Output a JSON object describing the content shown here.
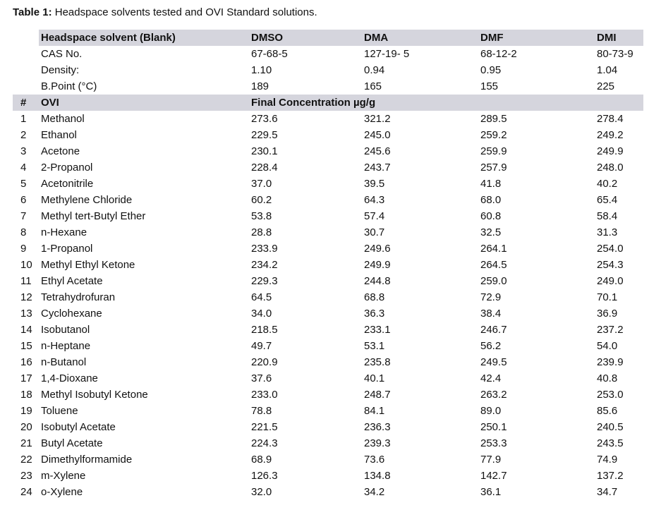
{
  "caption": {
    "label": "Table 1:",
    "text": " Headspace solvents tested and OVI Standard solutions."
  },
  "colors": {
    "header_band_bg": "#d5d5dd",
    "text": "#111111"
  },
  "table": {
    "solvent_header": {
      "label": "Headspace solvent (Blank)",
      "columns": [
        "DMSO",
        "DMA",
        "DMF",
        "DMI"
      ]
    },
    "info_rows": [
      {
        "label": "CAS No.",
        "values": [
          "67-68-5",
          "127-19- 5",
          "68-12-2",
          "80-73-9"
        ]
      },
      {
        "label": "Density:",
        "values": [
          "1.10",
          "0.94",
          "0.95",
          "1.04"
        ]
      },
      {
        "label": "B.Point (°C)",
        "values": [
          "189",
          "165",
          "155",
          "225"
        ]
      }
    ],
    "ovi_header": {
      "num": "#",
      "label": "OVI",
      "conc_label": "Final Concentration µg/g"
    },
    "rows": [
      {
        "num": "1",
        "name": "Methanol",
        "values": [
          "273.6",
          "321.2",
          "289.5",
          "278.4"
        ]
      },
      {
        "num": "2",
        "name": "Ethanol",
        "values": [
          "229.5",
          "245.0",
          "259.2",
          "249.2"
        ]
      },
      {
        "num": "3",
        "name": "Acetone",
        "values": [
          "230.1",
          "245.6",
          "259.9",
          "249.9"
        ]
      },
      {
        "num": "4",
        "name": "2-Propanol",
        "values": [
          "228.4",
          "243.7",
          "257.9",
          "248.0"
        ]
      },
      {
        "num": "5",
        "name": "Acetonitrile",
        "values": [
          "37.0",
          "39.5",
          "41.8",
          "40.2"
        ]
      },
      {
        "num": "6",
        "name": "Methylene Chloride",
        "values": [
          "60.2",
          "64.3",
          "68.0",
          "65.4"
        ]
      },
      {
        "num": "7",
        "name": "Methyl tert-Butyl Ether",
        "values": [
          "53.8",
          "57.4",
          "60.8",
          "58.4"
        ]
      },
      {
        "num": "8",
        "name": "n-Hexane",
        "values": [
          "28.8",
          "30.7",
          "32.5",
          "31.3"
        ]
      },
      {
        "num": "9",
        "name": "1-Propanol",
        "values": [
          "233.9",
          "249.6",
          "264.1",
          "254.0"
        ]
      },
      {
        "num": "10",
        "name": "Methyl Ethyl Ketone",
        "values": [
          "234.2",
          "249.9",
          "264.5",
          "254.3"
        ]
      },
      {
        "num": "11",
        "name": "Ethyl Acetate",
        "values": [
          "229.3",
          "244.8",
          "259.0",
          "249.0"
        ]
      },
      {
        "num": "12",
        "name": "Tetrahydrofuran",
        "values": [
          "64.5",
          "68.8",
          "72.9",
          "70.1"
        ]
      },
      {
        "num": "13",
        "name": "Cyclohexane",
        "values": [
          "34.0",
          "36.3",
          "38.4",
          "36.9"
        ]
      },
      {
        "num": "14",
        "name": "Isobutanol",
        "values": [
          "218.5",
          "233.1",
          "246.7",
          "237.2"
        ]
      },
      {
        "num": "15",
        "name": "n-Heptane",
        "values": [
          "49.7",
          "53.1",
          "56.2",
          "54.0"
        ]
      },
      {
        "num": "16",
        "name": "n-Butanol",
        "values": [
          "220.9",
          "235.8",
          "249.5",
          "239.9"
        ]
      },
      {
        "num": "17",
        "name": "1,4-Dioxane",
        "values": [
          "37.6",
          "40.1",
          "42.4",
          "40.8"
        ]
      },
      {
        "num": "18",
        "name": "Methyl Isobutyl Ketone",
        "values": [
          "233.0",
          "248.7",
          "263.2",
          "253.0"
        ]
      },
      {
        "num": "19",
        "name": "Toluene",
        "values": [
          "78.8",
          "84.1",
          "89.0",
          "85.6"
        ]
      },
      {
        "num": "20",
        "name": "Isobutyl Acetate",
        "values": [
          "221.5",
          "236.3",
          "250.1",
          "240.5"
        ]
      },
      {
        "num": "21",
        "name": "Butyl Acetate",
        "values": [
          "224.3",
          "239.3",
          "253.3",
          "243.5"
        ]
      },
      {
        "num": "22",
        "name": "Dimethylformamide",
        "values": [
          "68.9",
          "73.6",
          "77.9",
          "74.9"
        ]
      },
      {
        "num": "23",
        "name": "m-Xylene",
        "values": [
          "126.3",
          "134.8",
          "142.7",
          "137.2"
        ]
      },
      {
        "num": "24",
        "name": "o-Xylene",
        "values": [
          "32.0",
          "34.2",
          "36.1",
          "34.7"
        ]
      }
    ]
  }
}
